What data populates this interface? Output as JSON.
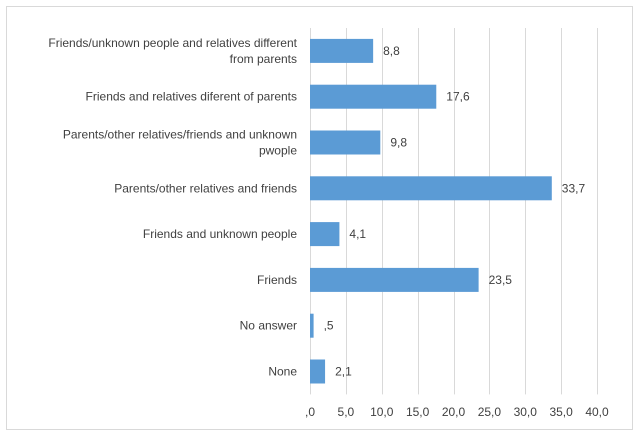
{
  "chart_data": {
    "type": "bar",
    "orientation": "horizontal",
    "title": "",
    "xlabel": "",
    "ylabel": "",
    "grid": true,
    "legend": "none",
    "xlim": [
      0,
      40
    ],
    "bar_color": "#5B9BD5",
    "grid_color": "#D9D9D9",
    "border_color": "#D9D9D9",
    "text_color": "#404040",
    "categories": [
      "Friends/unknown people and relatives different from parents",
      "Friends and relatives diferent of parents",
      "Parents/other relatives/friends and unknown pwople",
      "Parents/other relatives and friends",
      "Friends and unknown people",
      "Friends",
      "No answer",
      "None"
    ],
    "category_lines": [
      [
        "Friends/unknown people and relatives different",
        "from parents"
      ],
      [
        "Friends and relatives diferent of parents"
      ],
      [
        "Parents/other relatives/friends and unknown",
        "pwople"
      ],
      [
        "Parents/other relatives and friends"
      ],
      [
        "Friends and unknown people"
      ],
      [
        "Friends"
      ],
      [
        "No answer"
      ],
      [
        "None"
      ]
    ],
    "values": [
      8.8,
      17.6,
      9.8,
      33.7,
      4.1,
      23.5,
      0.5,
      2.1
    ],
    "value_labels": [
      "8,8",
      "17,6",
      "9,8",
      "33,7",
      "4,1",
      "23,5",
      ",5",
      "2,1"
    ],
    "ticks": [
      0,
      5,
      10,
      15,
      20,
      25,
      30,
      35,
      40
    ],
    "tick_labels": [
      ",0",
      "5,0",
      "10,0",
      "15,0",
      "20,0",
      "25,0",
      "30,0",
      "35,0",
      "40,0"
    ]
  }
}
